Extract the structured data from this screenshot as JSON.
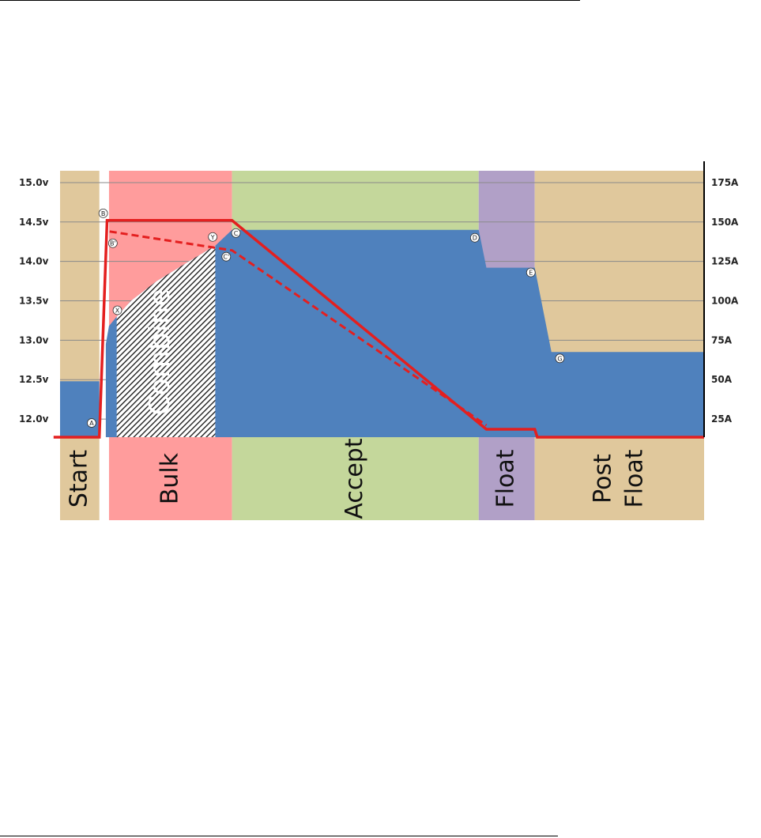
{
  "chart_data": {
    "type": "area",
    "title": "",
    "xlabel": "",
    "ylabel": "",
    "y_left": {
      "ticks": [
        "15.0v",
        "14.5v",
        "14.0v",
        "13.5v",
        "13.0v",
        "12.5v",
        "12.0v"
      ],
      "values": [
        15.0,
        14.5,
        14.0,
        13.5,
        13.0,
        12.5,
        12.0
      ],
      "range": [
        11.77,
        15.15
      ]
    },
    "y_right": {
      "ticks": [
        "175A",
        "150A",
        "125A",
        "100A",
        "75A",
        "50A",
        "25A"
      ],
      "values": [
        175,
        150,
        125,
        100,
        75,
        50,
        25
      ]
    },
    "x_range": [
      0,
      100
    ],
    "grid": true,
    "phases": [
      {
        "label": "Start",
        "start": 0,
        "end": 6.1,
        "color": "#e0c89c",
        "band_top_v": 15.15
      },
      {
        "label": "Bulk",
        "start": 7.6,
        "end": 26.7,
        "color": "#ff9c9c",
        "band_top_v": 15.15
      },
      {
        "label": "Accept",
        "start": 26.7,
        "end": 65.0,
        "color": "#c4d79b",
        "band_top_v": 15.15
      },
      {
        "label": "Float",
        "start": 65.0,
        "end": 73.7,
        "color": "#b1a0c7",
        "band_top_v": 15.15
      },
      {
        "label": "Post",
        "label2": "Float",
        "start": 73.7,
        "end": 100,
        "color": "#e0c89c",
        "band_top_v": 15.15
      }
    ],
    "shaded_region": {
      "label": "Combine",
      "start": 8.8,
      "end": 24.1
    },
    "series": [
      {
        "kind": "voltage-area",
        "color": "#4f81bd",
        "points": [
          [
            0,
            12.48
          ],
          [
            6.1,
            12.48
          ],
          [
            6.1,
            11.77
          ],
          [
            7.1,
            11.77
          ],
          [
            7.1,
            12.95
          ],
          [
            7.6,
            13.18
          ],
          [
            8.8,
            13.3
          ],
          [
            11,
            13.5
          ],
          [
            15,
            13.75
          ],
          [
            20,
            14.0
          ],
          [
            24.1,
            14.2
          ],
          [
            26.7,
            14.4
          ],
          [
            65.0,
            14.4
          ],
          [
            66.2,
            13.92
          ],
          [
            73.7,
            13.92
          ],
          [
            76.3,
            12.85
          ],
          [
            100,
            12.85
          ]
        ]
      },
      {
        "kind": "current-solid",
        "color": "#e41f1f",
        "points": [
          [
            -1,
            11.77
          ],
          [
            6.1,
            11.77
          ],
          [
            7.3,
            14.52
          ],
          [
            26.7,
            14.52
          ],
          [
            66.2,
            11.87
          ],
          [
            73.7,
            11.87
          ],
          [
            74.1,
            11.77
          ],
          [
            100,
            11.77
          ]
        ]
      },
      {
        "kind": "current-dashed",
        "color": "#e41f1f",
        "points": [
          [
            7.7,
            14.38
          ],
          [
            26.7,
            14.14
          ],
          [
            66.2,
            11.92
          ]
        ]
      }
    ],
    "annotations": [
      {
        "label": "A",
        "x": 4.9,
        "v": 11.95
      },
      {
        "label": "B",
        "x": 6.7,
        "v": 14.61
      },
      {
        "label": "B'",
        "x": 8.2,
        "v": 14.23
      },
      {
        "label": "X",
        "x": 8.9,
        "v": 13.38
      },
      {
        "label": "Y",
        "x": 23.7,
        "v": 14.31
      },
      {
        "label": "C",
        "x": 27.3,
        "v": 14.36
      },
      {
        "label": "C'",
        "x": 25.8,
        "v": 14.06
      },
      {
        "label": "D",
        "x": 64.4,
        "v": 14.3
      },
      {
        "label": "E",
        "x": 73.1,
        "v": 13.86
      },
      {
        "label": "G",
        "x": 77.6,
        "v": 12.77
      }
    ]
  }
}
